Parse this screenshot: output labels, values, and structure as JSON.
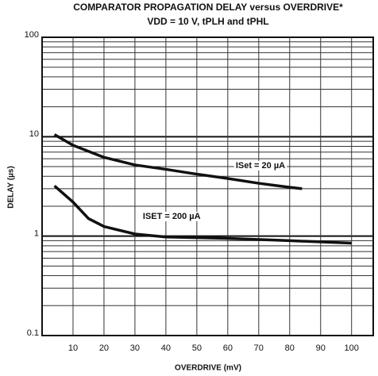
{
  "chart_data": {
    "type": "line",
    "title": "COMPARATOR PROPAGATION DELAY versus OVERDRIVE*",
    "subtitle": "VDD = 10 V, tPLH and tPHL",
    "x_label": "OVERDRIVE (mV)",
    "y_label": "DELAY (µs)",
    "log_y": true,
    "grid": true,
    "xlim": [
      0,
      107
    ],
    "ylim": [
      0.1,
      100
    ],
    "xticks": [
      10,
      20,
      30,
      40,
      50,
      60,
      70,
      80,
      90,
      100
    ],
    "yticks": [
      0.1,
      1,
      10,
      100
    ],
    "yminor": [
      0.2,
      0.3,
      0.4,
      0.5,
      0.6,
      0.7,
      0.8,
      0.9,
      2,
      3,
      4,
      5,
      6,
      7,
      8,
      9,
      20,
      30,
      40,
      50,
      60,
      70,
      80,
      90
    ],
    "series": [
      {
        "name": "ISet = 20 µA",
        "color": "#111111",
        "x": [
          4,
          10,
          20,
          30,
          40,
          50,
          60,
          70,
          80,
          84
        ],
        "values": [
          10.5,
          8.2,
          6.2,
          5.2,
          4.7,
          4.2,
          3.8,
          3.4,
          3.1,
          3.0
        ]
      },
      {
        "name": "ISET = 200 µA",
        "color": "#111111",
        "x": [
          4,
          10,
          15,
          20,
          30,
          40,
          60,
          80,
          100
        ],
        "values": [
          3.2,
          2.2,
          1.5,
          1.25,
          1.05,
          0.98,
          0.95,
          0.9,
          0.85
        ]
      }
    ]
  }
}
